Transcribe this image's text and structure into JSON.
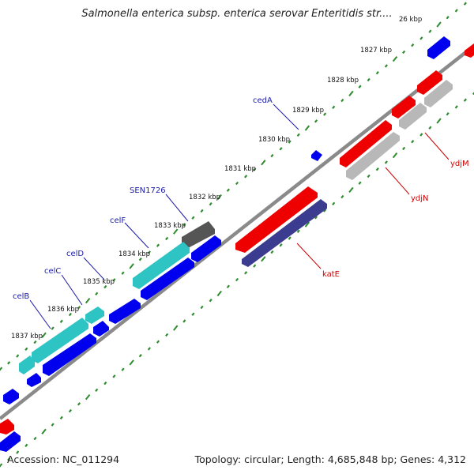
{
  "header": {
    "title": "Salmonella enterica subsp. enterica serovar Enteritidis str...."
  },
  "footer": {
    "accession": "Accession: NC_011294",
    "topology": "Topology: circular; Length: 4,685,848 bp; Genes: 4,312"
  },
  "map": {
    "tick_labels": [
      {
        "id": "1826",
        "text": "26 kbp"
      },
      {
        "id": "1827",
        "text": "1827 kbp"
      },
      {
        "id": "1828",
        "text": "1828 kbp"
      },
      {
        "id": "1829",
        "text": "1829 kbp"
      },
      {
        "id": "1830",
        "text": "1830 kbp"
      },
      {
        "id": "1831",
        "text": "1831 kbp"
      },
      {
        "id": "1832",
        "text": "1832 kbp"
      },
      {
        "id": "1833",
        "text": "1833 kbp"
      },
      {
        "id": "1834",
        "text": "1834 kbp"
      },
      {
        "id": "1835",
        "text": "1835 kbp"
      },
      {
        "id": "1836",
        "text": "1836 kbp"
      },
      {
        "id": "1837",
        "text": "1837 kbp"
      }
    ],
    "gene_labels": [
      {
        "id": "cedA",
        "text": "cedA",
        "color": "#1a1aa8"
      },
      {
        "id": "SEN1726",
        "text": "SEN1726",
        "color": "#1a1aa8"
      },
      {
        "id": "celF",
        "text": "celF",
        "color": "#1a1aa8"
      },
      {
        "id": "celD",
        "text": "celD",
        "color": "#1a1aa8"
      },
      {
        "id": "celC",
        "text": "celC",
        "color": "#1a1aa8"
      },
      {
        "id": "celB",
        "text": "celB",
        "color": "#1a1aa8"
      },
      {
        "id": "katE",
        "text": "katE",
        "color": "#cc0000"
      },
      {
        "id": "ydjN",
        "text": "ydjN",
        "color": "#cc0000"
      },
      {
        "id": "ydjM",
        "text": "ydjM",
        "color": "#cc0000"
      }
    ],
    "colors": {
      "backbone": "#8a8a8a",
      "ruler_dots": "#2e8b2e",
      "cds_forward": "#0000ee",
      "cds_reverse": "#ee0000",
      "cyan_feature": "#2ec4c4",
      "gray_feature": "#b8b8b8",
      "dark_gray_feature": "#555555",
      "navy_feature": "#3b3b8f"
    }
  }
}
